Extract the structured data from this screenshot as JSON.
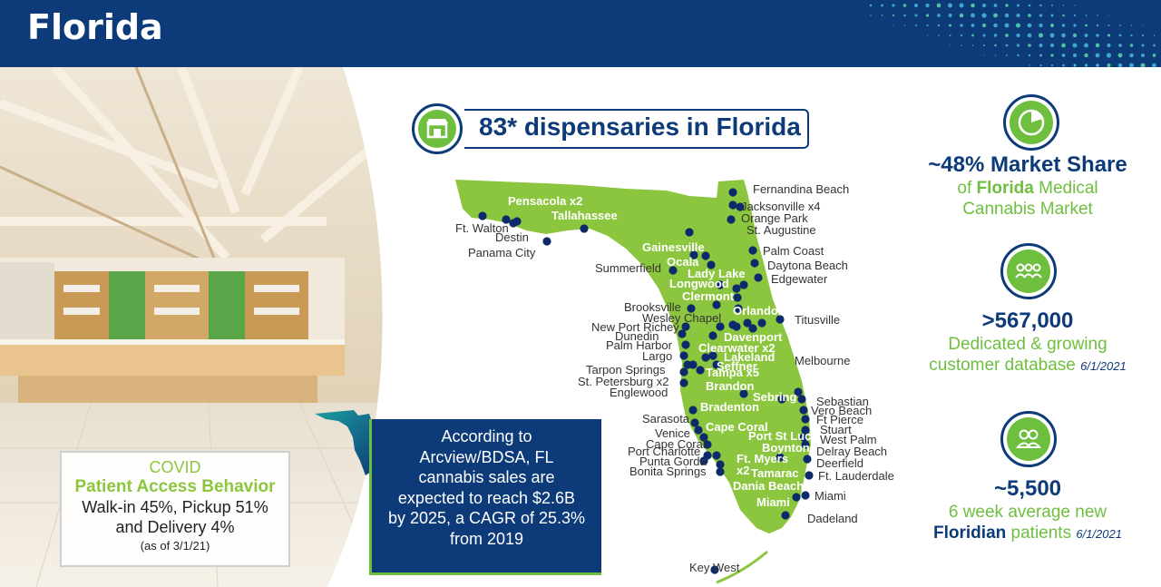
{
  "header": {
    "title": "Florida"
  },
  "covid": {
    "line1": "COVID",
    "line2": "Patient Access Behavior",
    "line3": "Walk-in 45%, Pickup 51%",
    "line4": "and Delivery 4%",
    "line5": "(as of 3/1/21)"
  },
  "sales": {
    "line1": "According to",
    "line2": "Arcview/BDSA, FL",
    "line3": "cannabis sales are",
    "line4": "expected to reach $2.6B",
    "line5": "by 2025, a CAGR of 25.3%",
    "line6": "from 2019"
  },
  "dispensaries": {
    "title": "83* dispensaries in Florida"
  },
  "map_labels": {
    "pensacola": "Pensacola x2",
    "tallahassee": "Tallahassee",
    "ft_walton": "Ft. Walton",
    "destin": "Destin",
    "panama_city": "Panama City",
    "fernandina": "Fernandina Beach",
    "jacksonville": "Jacksonville x4",
    "orange_park": "Orange Park",
    "st_augustine": "St. Augustine",
    "palm_coast": "Palm Coast",
    "daytona": "Daytona Beach",
    "edgewater": "Edgewater",
    "gainesville": "Gainesville",
    "ocala": "Ocala",
    "summerfield": "Summerfield",
    "lady_lake": "Lady Lake",
    "longwood": "Longwood",
    "clermont": "Clermont",
    "brooksville": "Brooksville",
    "orlando": "Orlando x4",
    "wesley_chapel": "Wesley Chapel",
    "new_port_richey": "New Port Richey",
    "dunedin": "Dunedin",
    "davenport": "Davenport",
    "palm_harbor": "Palm Harbor",
    "clearwater": "Clearwater x2",
    "largo": "Largo",
    "lakeland": "Lakeland",
    "tarpon_springs": "Tarpon Springs",
    "seffner": "Seffner",
    "st_pete": "St. Petersburg x2",
    "tampa": "Tampa x5",
    "englewood": "Englewood",
    "brandon": "Brandon",
    "titusville": "Titusville",
    "melbourne": "Melbourne",
    "sebring": "Sebring",
    "sebastian": "Sebastian",
    "vero_beach": "Vero Beach",
    "bradenton": "Bradenton",
    "sarasota": "Sarasota",
    "ft_pierce": "Ft Pierce",
    "cape_coral": "Cape Coral",
    "venice": "Venice",
    "stuart": "Stuart",
    "port_st_lucy": "Port St Lucy",
    "cape_coral_2": "Cape Coral",
    "west_palm": "West Palm",
    "boynton": "Boynton",
    "port_charlotte": "Port Charlotte",
    "delray": "Delray Beach",
    "punta_gorda": "Punta Gorda",
    "ft_myers": "Ft. Myers",
    "deerfield": "Deerfield",
    "bonita": "Bonita Springs",
    "x2": "x2",
    "tamarac": "Tamarac",
    "ft_lauderdale": "Ft. Lauderdale",
    "dania": "Dania Beach",
    "miami_w": "Miami",
    "miami_e": "Miami",
    "dadeland": "Dadeland",
    "key_west": "Key West"
  },
  "stats": {
    "market_share": {
      "big": "~48% Market Share",
      "sub_pre": "of ",
      "sub_bold": "Florida",
      "sub_post": " Medical",
      "sub2": "Cannabis Market"
    },
    "customers": {
      "big": ">567,000",
      "sub1": "Dedicated & growing",
      "sub2": "customer database",
      "date": "6/1/2021"
    },
    "patients": {
      "big": "~5,500",
      "sub1": "6 week average new",
      "sub_bold": "Floridian",
      "sub_post": " patients",
      "date": "6/1/2021"
    }
  },
  "colors": {
    "navy": "#0d3a78",
    "green": "#6fbf3f",
    "light_green": "#8cc63f"
  },
  "icons": {
    "store": "store-icon",
    "pie": "pie-chart-icon",
    "group": "group-icon",
    "people": "people-icon"
  }
}
